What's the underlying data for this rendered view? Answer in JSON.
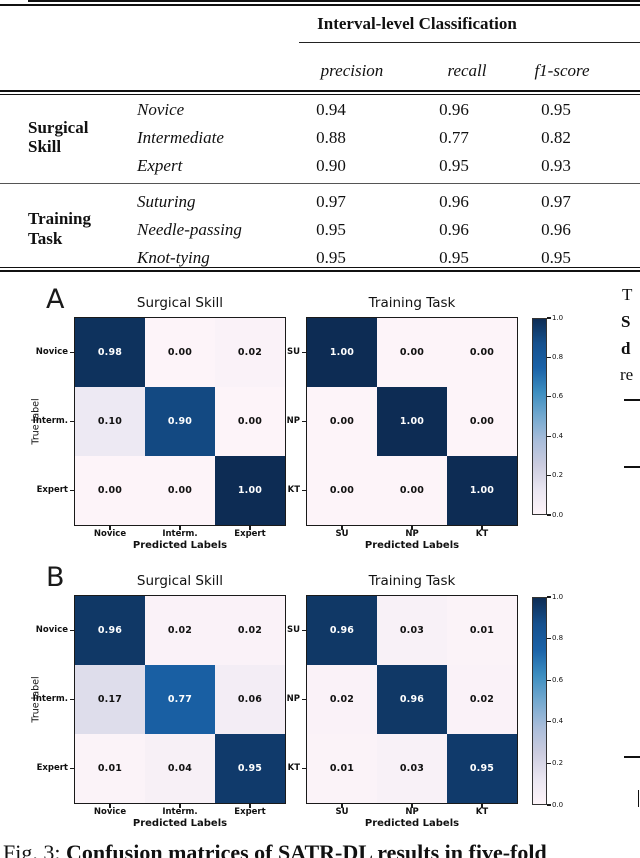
{
  "table": {
    "header_group": "Interval-level Classification",
    "col_headers": [
      "precision",
      "recall",
      "f1-score"
    ],
    "groups": [
      {
        "name_line1": "Surgical",
        "name_line2": "Skill",
        "rows": [
          {
            "name": "Novice",
            "values": [
              "0.94",
              "0.96",
              "0.95"
            ]
          },
          {
            "name": "Intermediate",
            "values": [
              "0.88",
              "0.77",
              "0.82"
            ]
          },
          {
            "name": "Expert",
            "values": [
              "0.90",
              "0.95",
              "0.93"
            ]
          }
        ]
      },
      {
        "name_line1": "Training",
        "name_line2": "Task",
        "rows": [
          {
            "name": "Suturing",
            "values": [
              "0.97",
              "0.96",
              "0.97"
            ]
          },
          {
            "name": "Needle-passing",
            "values": [
              "0.95",
              "0.96",
              "0.96"
            ]
          },
          {
            "name": "Knot-tying",
            "values": [
              "0.95",
              "0.95",
              "0.95"
            ]
          }
        ]
      }
    ]
  },
  "figure": {
    "panel_letters": [
      "A",
      "B"
    ],
    "ylabel": "True label",
    "xlabel": "Predicted Labels",
    "colorbar_ticks": [
      "1.0",
      "0.8",
      "0.6",
      "0.4",
      "0.2",
      "0.0"
    ],
    "colormap": [
      "#fdf4f9",
      "#e9e6f1",
      "#cbccdf",
      "#a9bdda",
      "#74a9cf",
      "#3d8ec0",
      "#1a62a7",
      "#15508d",
      "#0d2c54"
    ]
  },
  "chart_data": [
    {
      "type": "heatmap",
      "panel": "A",
      "title": "Surgical Skill",
      "row_labels": [
        "Novice",
        "Interm.",
        "Expert"
      ],
      "col_labels": [
        "Novice",
        "Interm.",
        "Expert"
      ],
      "values": [
        [
          0.98,
          0.0,
          0.02
        ],
        [
          0.1,
          0.9,
          0.0
        ],
        [
          0.0,
          0.0,
          1.0
        ]
      ],
      "ylabel": "True label",
      "xlabel": "Predicted Labels",
      "vmin": 0.0,
      "vmax": 1.0
    },
    {
      "type": "heatmap",
      "panel": "A",
      "title": "Training Task",
      "row_labels": [
        "SU",
        "NP",
        "KT"
      ],
      "col_labels": [
        "SU",
        "NP",
        "KT"
      ],
      "values": [
        [
          1.0,
          0.0,
          0.0
        ],
        [
          0.0,
          1.0,
          0.0
        ],
        [
          0.0,
          0.0,
          1.0
        ]
      ],
      "xlabel": "Predicted Labels",
      "vmin": 0.0,
      "vmax": 1.0
    },
    {
      "type": "heatmap",
      "panel": "B",
      "title": "Surgical Skill",
      "row_labels": [
        "Novice",
        "Interm.",
        "Expert"
      ],
      "col_labels": [
        "Novice",
        "Interm.",
        "Expert"
      ],
      "values": [
        [
          0.96,
          0.02,
          0.02
        ],
        [
          0.17,
          0.77,
          0.06
        ],
        [
          0.01,
          0.04,
          0.95
        ]
      ],
      "ylabel": "True label",
      "xlabel": "Predicted Labels",
      "vmin": 0.0,
      "vmax": 1.0
    },
    {
      "type": "heatmap",
      "panel": "B",
      "title": "Training Task",
      "row_labels": [
        "SU",
        "NP",
        "KT"
      ],
      "col_labels": [
        "SU",
        "NP",
        "KT"
      ],
      "values": [
        [
          0.96,
          0.03,
          0.01
        ],
        [
          0.02,
          0.96,
          0.02
        ],
        [
          0.01,
          0.03,
          0.95
        ]
      ],
      "xlabel": "Predicted Labels",
      "vmin": 0.0,
      "vmax": 1.0
    }
  ],
  "caption": {
    "prefix": "Fig. 3: ",
    "bold_text": "Confusion matrices of SATR-DL results in five-fold"
  },
  "side_column": {
    "frag1": "T",
    "frag2": "S",
    "frag3": "d",
    "frag4": "re"
  }
}
